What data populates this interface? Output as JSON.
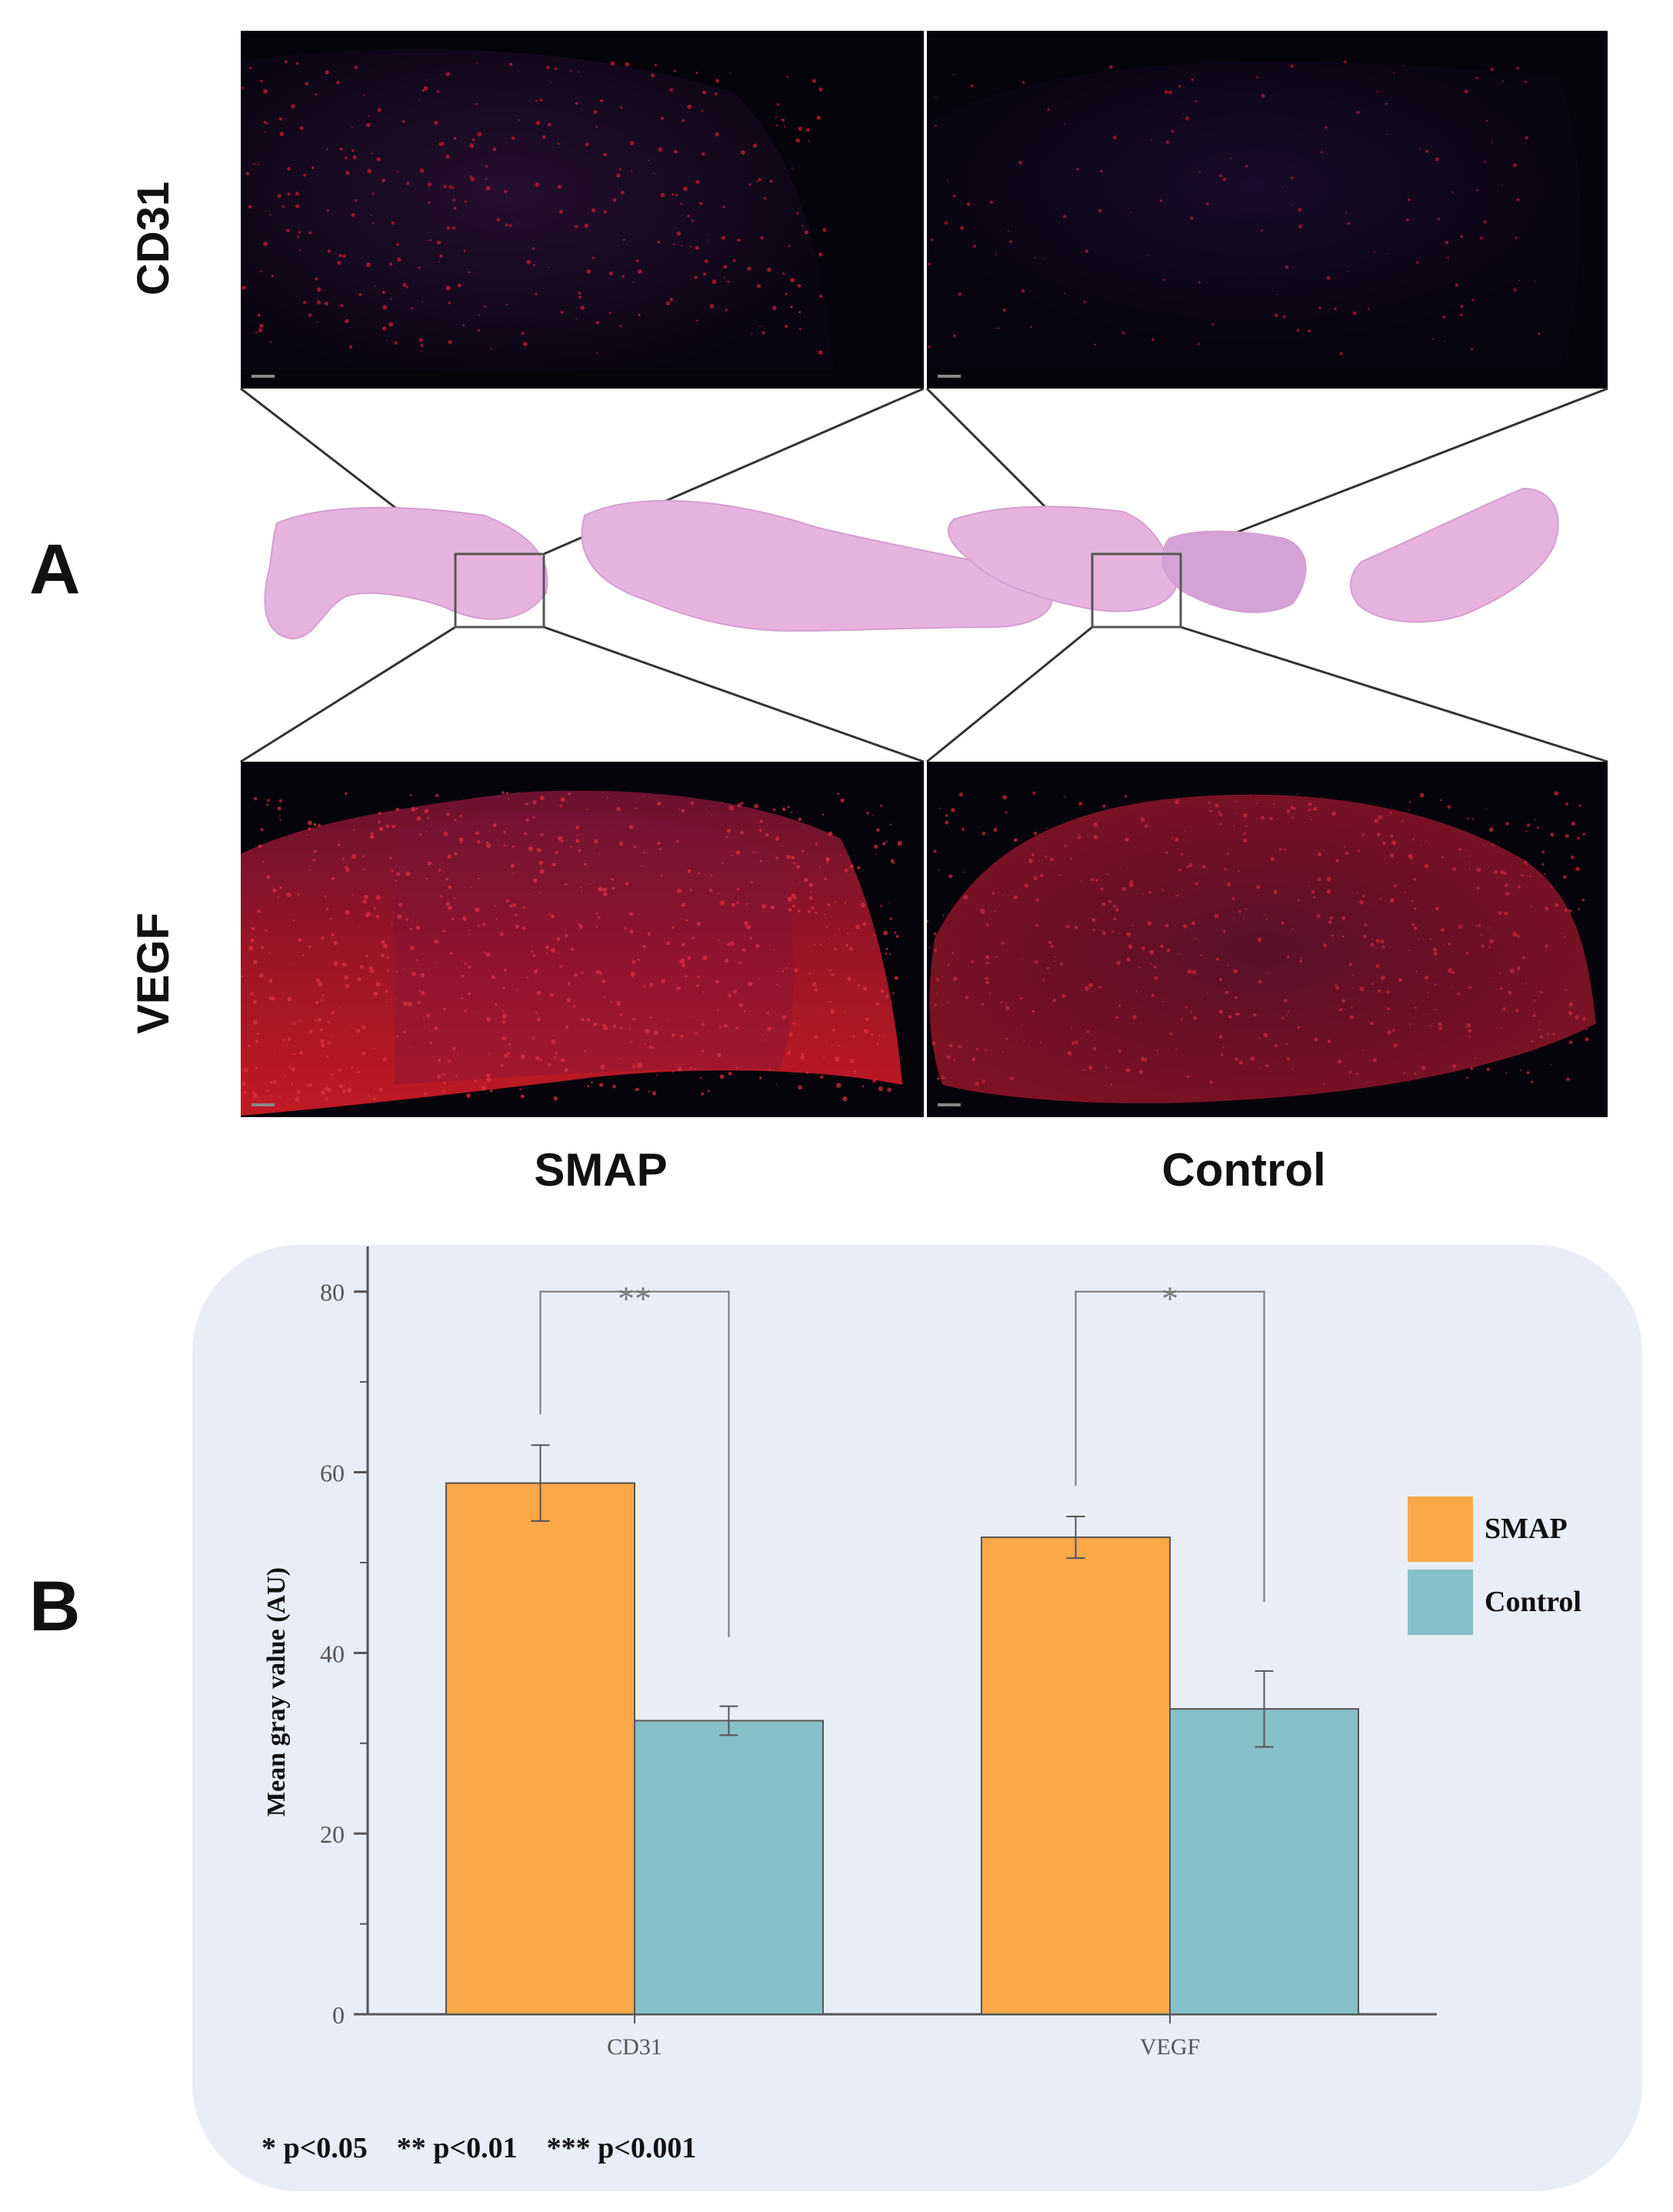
{
  "panel_a": {
    "letter": "A",
    "row_labels": [
      "CD31",
      "VEGF"
    ],
    "column_labels": [
      "SMAP",
      "Control"
    ]
  },
  "panel_b": {
    "letter": "B",
    "significance_note": "* p<0.05    ** p<0.01    *** p<0.001"
  },
  "colors": {
    "smap": "#fba849",
    "control": "#86c0c8",
    "chart_background": "#e9edf6",
    "stain_red": "#d0182a",
    "he_pink": "#e6b3df"
  },
  "chart_data": {
    "type": "bar",
    "categories": [
      "CD31",
      "VEGF"
    ],
    "series": [
      {
        "name": "SMAP",
        "values": [
          58.8,
          52.8
        ],
        "error": [
          4.2,
          2.3
        ]
      },
      {
        "name": "Control",
        "values": [
          32.5,
          33.8
        ],
        "error": [
          1.6,
          4.2
        ]
      }
    ],
    "xlabel": "",
    "ylabel": "Mean gray value (AU)",
    "ylim": [
      0,
      85
    ],
    "yticks": [
      0,
      20,
      40,
      60,
      80
    ],
    "legend": {
      "position": "right",
      "entries": [
        "SMAP",
        "Control"
      ]
    },
    "significance": [
      {
        "category": "CD31",
        "marker": "**"
      },
      {
        "category": "VEGF",
        "marker": "*"
      }
    ],
    "grid": false
  }
}
